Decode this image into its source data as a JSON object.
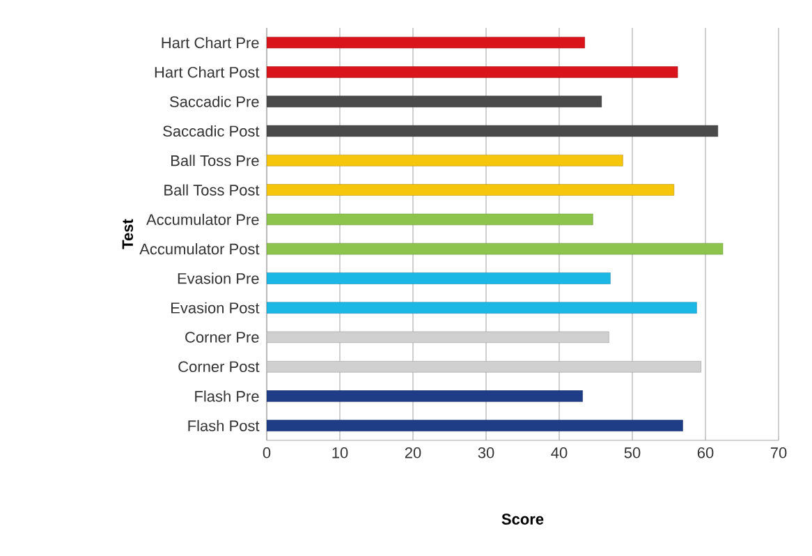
{
  "chart_data": {
    "type": "bar",
    "orientation": "horizontal",
    "xlabel": "Score",
    "ylabel": "Test",
    "categories": [
      "Hart Chart Pre",
      "Hart Chart Post",
      "Saccadic Pre",
      "Saccadic Post",
      "Ball Toss Pre",
      "Ball Toss Post",
      "Accumulator Pre",
      "Accumulator Post",
      "Evasion Pre",
      "Evasion Post",
      "Corner Pre",
      "Corner Post",
      "Flash Pre",
      "Flash Post"
    ],
    "values": [
      43.5,
      56.2,
      45.8,
      61.7,
      48.7,
      55.7,
      44.6,
      62.4,
      47.0,
      58.8,
      46.8,
      59.4,
      43.2,
      56.9
    ],
    "colors": [
      "#d9141b",
      "#d9141b",
      "#4a4a4a",
      "#4a4a4a",
      "#f5c60c",
      "#f5c60c",
      "#8cc44c",
      "#8cc44c",
      "#1bb8e6",
      "#1bb8e6",
      "#d0d0d0",
      "#d0d0d0",
      "#1f3d86",
      "#1f3d86"
    ],
    "xlim": [
      0,
      70
    ],
    "xticks": [
      0,
      10,
      20,
      30,
      40,
      50,
      60,
      70
    ],
    "grid": "x"
  }
}
